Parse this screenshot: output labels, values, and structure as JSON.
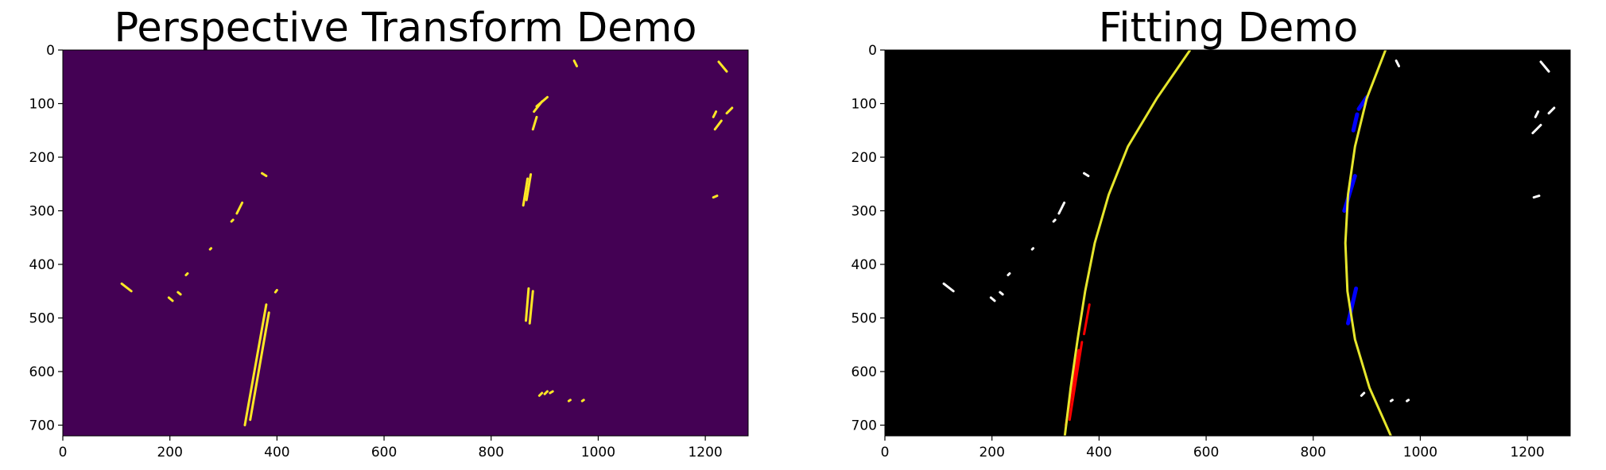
{
  "figure": {
    "panels": [
      {
        "id": "left",
        "title": "Perspective Transform Demo",
        "background": "#440154",
        "mark_color": "#fde725"
      },
      {
        "id": "right",
        "title": "Fitting Demo",
        "background": "#000000",
        "mark_color": "#ffffff",
        "fit_color": "#e6e62c",
        "left_lane_pixels_color": "#ff0000",
        "right_lane_pixels_color": "#0000ff"
      }
    ]
  },
  "chart_data": [
    {
      "type": "heatmap",
      "title": "Perspective Transform Demo",
      "xlim": [
        0,
        1280
      ],
      "ylim": [
        720,
        0
      ],
      "x_ticks": [
        0,
        200,
        400,
        600,
        800,
        1000,
        1200
      ],
      "y_ticks": [
        0,
        100,
        200,
        300,
        400,
        500,
        600,
        700
      ],
      "colormap": "viridis (binary: 0 = purple, 1 = yellow)",
      "pixel_streaks": [
        [
          [
            955,
            20
          ],
          [
            960,
            30
          ]
        ],
        [
          [
            1225,
            22
          ],
          [
            1240,
            40
          ]
        ],
        [
          [
            885,
            105
          ],
          [
            905,
            88
          ]
        ],
        [
          [
            880,
            115
          ],
          [
            895,
            96
          ]
        ],
        [
          [
            878,
            148
          ],
          [
            885,
            125
          ]
        ],
        [
          [
            1215,
            125
          ],
          [
            1220,
            115
          ]
        ],
        [
          [
            1218,
            148
          ],
          [
            1230,
            132
          ]
        ],
        [
          [
            1240,
            118
          ],
          [
            1250,
            108
          ]
        ],
        [
          [
            860,
            290
          ],
          [
            868,
            240
          ]
        ],
        [
          [
            866,
            280
          ],
          [
            874,
            232
          ]
        ],
        [
          [
            372,
            230
          ],
          [
            380,
            235
          ]
        ],
        [
          [
            1215,
            275
          ],
          [
            1222,
            272
          ]
        ],
        [
          [
            325,
            305
          ],
          [
            335,
            285
          ]
        ],
        [
          [
            315,
            320
          ],
          [
            318,
            317
          ]
        ],
        [
          [
            275,
            372
          ],
          [
            277,
            370
          ]
        ],
        [
          [
            230,
            420
          ],
          [
            233,
            417
          ]
        ],
        [
          [
            110,
            436
          ],
          [
            128,
            450
          ]
        ],
        [
          [
            198,
            462
          ],
          [
            205,
            468
          ]
        ],
        [
          [
            215,
            452
          ],
          [
            220,
            456
          ]
        ],
        [
          [
            865,
            505
          ],
          [
            870,
            445
          ]
        ],
        [
          [
            872,
            510
          ],
          [
            878,
            450
          ]
        ],
        [
          [
            340,
            700
          ],
          [
            380,
            475
          ]
        ],
        [
          [
            350,
            690
          ],
          [
            385,
            490
          ]
        ],
        [
          [
            397,
            452
          ],
          [
            400,
            448
          ]
        ],
        [
          [
            890,
            645
          ],
          [
            895,
            640
          ]
        ],
        [
          [
            900,
            642
          ],
          [
            905,
            637
          ]
        ],
        [
          [
            910,
            640
          ],
          [
            915,
            637
          ]
        ],
        [
          [
            945,
            655
          ],
          [
            948,
            653
          ]
        ],
        [
          [
            970,
            655
          ],
          [
            973,
            653
          ]
        ]
      ]
    },
    {
      "type": "heatmap",
      "title": "Fitting Demo",
      "xlim": [
        0,
        1280
      ],
      "ylim": [
        720,
        0
      ],
      "x_ticks": [
        0,
        200,
        400,
        600,
        800,
        1000,
        1200
      ],
      "y_ticks": [
        0,
        100,
        200,
        300,
        400,
        500,
        600,
        700
      ],
      "white_pixel_streaks": [
        [
          [
            955,
            20
          ],
          [
            960,
            30
          ]
        ],
        [
          [
            1225,
            22
          ],
          [
            1240,
            40
          ]
        ],
        [
          [
            1215,
            125
          ],
          [
            1220,
            115
          ]
        ],
        [
          [
            1210,
            155
          ],
          [
            1225,
            140
          ]
        ],
        [
          [
            1240,
            118
          ],
          [
            1250,
            108
          ]
        ],
        [
          [
            1212,
            275
          ],
          [
            1222,
            272
          ]
        ],
        [
          [
            372,
            230
          ],
          [
            380,
            235
          ]
        ],
        [
          [
            325,
            305
          ],
          [
            335,
            285
          ]
        ],
        [
          [
            315,
            320
          ],
          [
            318,
            317
          ]
        ],
        [
          [
            275,
            372
          ],
          [
            277,
            370
          ]
        ],
        [
          [
            230,
            420
          ],
          [
            233,
            417
          ]
        ],
        [
          [
            110,
            436
          ],
          [
            128,
            450
          ]
        ],
        [
          [
            198,
            462
          ],
          [
            205,
            468
          ]
        ],
        [
          [
            215,
            452
          ],
          [
            220,
            456
          ]
        ],
        [
          [
            890,
            645
          ],
          [
            895,
            640
          ]
        ],
        [
          [
            945,
            655
          ],
          [
            948,
            653
          ]
        ],
        [
          [
            975,
            655
          ],
          [
            978,
            653
          ]
        ]
      ],
      "left_lane_pixels": [
        [
          [
            338,
            700
          ],
          [
            362,
            560
          ]
        ],
        [
          [
            345,
            690
          ],
          [
            368,
            545
          ]
        ],
        [
          [
            372,
            530
          ],
          [
            382,
            475
          ]
        ]
      ],
      "right_lane_pixels": [
        [
          [
            875,
            150
          ],
          [
            882,
            120
          ]
        ],
        [
          [
            885,
            110
          ],
          [
            900,
            88
          ]
        ],
        [
          [
            858,
            300
          ],
          [
            878,
            235
          ]
        ],
        [
          [
            865,
            510
          ],
          [
            880,
            445
          ]
        ]
      ],
      "fit_lines": [
        {
          "y": [
            0,
            90,
            180,
            270,
            360,
            450,
            540,
            630,
            720
          ],
          "x": [
            570,
            508,
            454,
            418,
            392,
            374,
            360,
            347,
            336
          ]
        },
        {
          "y": [
            0,
            90,
            180,
            270,
            360,
            450,
            540,
            630,
            720
          ],
          "x": [
            935,
            900,
            878,
            865,
            860,
            864,
            878,
            905,
            945
          ]
        }
      ]
    }
  ]
}
